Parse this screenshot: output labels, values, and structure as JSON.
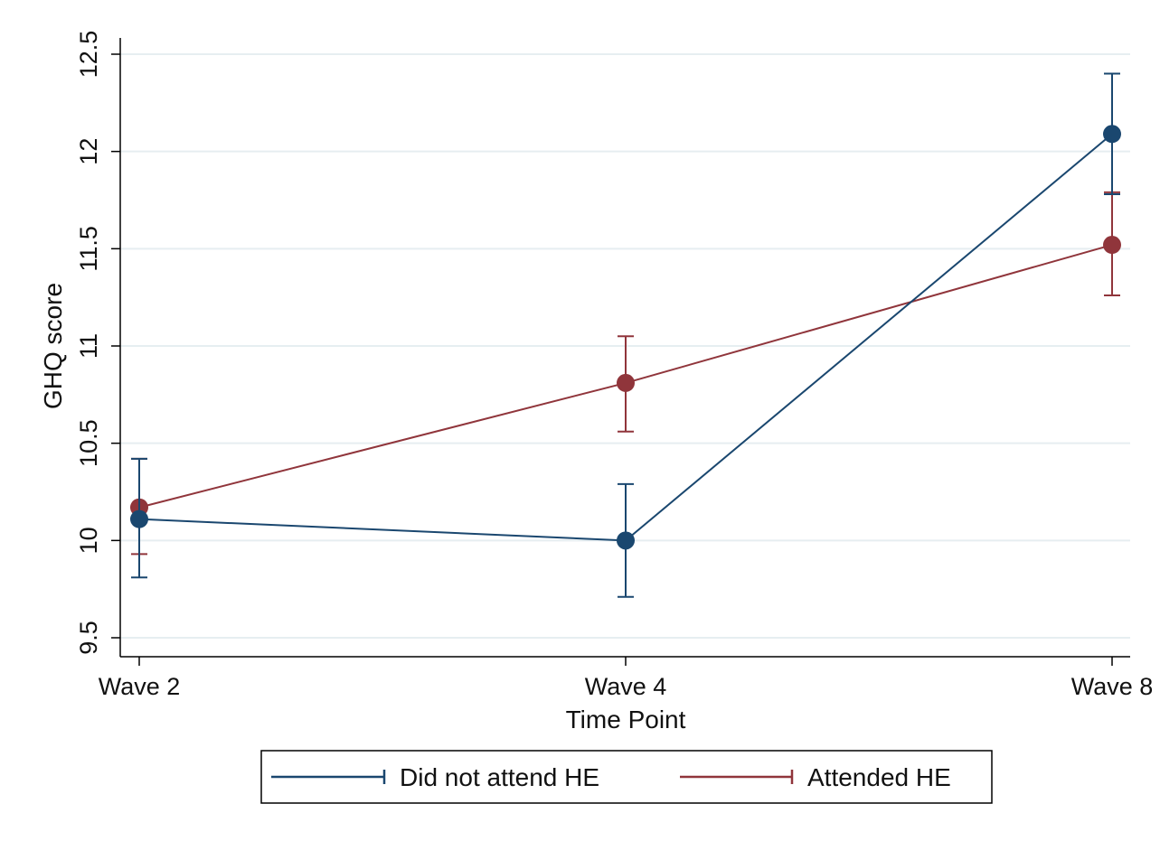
{
  "chart_data": {
    "type": "line",
    "title": "",
    "xlabel": "Time Point",
    "ylabel": "GHQ score",
    "categories": [
      "Wave 2",
      "Wave 4",
      "Wave 8"
    ],
    "ylim": [
      9.5,
      12.5
    ],
    "yticks": [
      "9.5",
      "10",
      "10.5",
      "11",
      "11.5",
      "12",
      "12.5"
    ],
    "grid": true,
    "legend_position": "bottom",
    "series": [
      {
        "name": "Did not attend HE",
        "color": "#1a476f",
        "values": [
          10.11,
          10.0,
          12.09
        ],
        "ci_low": [
          9.81,
          9.71,
          11.78
        ],
        "ci_high": [
          10.42,
          10.29,
          12.4
        ]
      },
      {
        "name": "Attended HE",
        "color": "#90353b",
        "values": [
          10.17,
          10.81,
          11.52
        ],
        "ci_low": [
          9.93,
          10.56,
          11.26
        ],
        "ci_high": [
          10.42,
          11.05,
          11.79
        ]
      }
    ]
  }
}
